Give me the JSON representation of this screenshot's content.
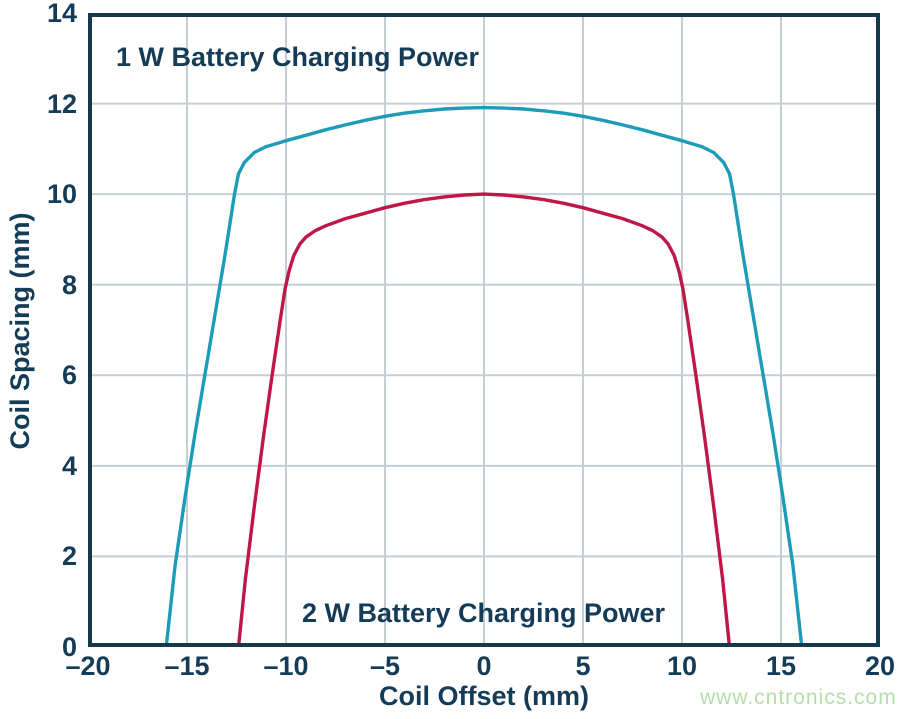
{
  "watermark": {
    "text": "www.cntronics.com",
    "color": "#b5dfaa"
  },
  "chart_data": {
    "type": "line",
    "title": "",
    "xlabel": "Coil Offset (mm)",
    "ylabel": "Coil Spacing (mm)",
    "xlim": [
      -20,
      20
    ],
    "ylim": [
      0,
      14
    ],
    "grid": true,
    "legend_position": "in-plot text annotations",
    "colors": {
      "axis_text": "#153c57",
      "plot_border": "#17384a",
      "gridline": "#c5ced4",
      "series_1w": "#1d9cb8",
      "series_2w": "#bf1746"
    },
    "xticks": [
      {
        "v": -20,
        "label": "–20"
      },
      {
        "v": -15,
        "label": "–15"
      },
      {
        "v": -10,
        "label": "–10"
      },
      {
        "v": -5,
        "label": "–5"
      },
      {
        "v": 0,
        "label": "0"
      },
      {
        "v": 5,
        "label": "5"
      },
      {
        "v": 10,
        "label": "10"
      },
      {
        "v": 15,
        "label": "15"
      },
      {
        "v": 20,
        "label": "20"
      }
    ],
    "yticks": [
      {
        "v": 0,
        "label": "0"
      },
      {
        "v": 2,
        "label": "2"
      },
      {
        "v": 4,
        "label": "4"
      },
      {
        "v": 6,
        "label": "6"
      },
      {
        "v": 8,
        "label": "8"
      },
      {
        "v": 10,
        "label": "10"
      },
      {
        "v": 12,
        "label": "12"
      },
      {
        "v": 14,
        "label": "14"
      }
    ],
    "xgrid": [
      -15,
      -10,
      -5,
      0,
      5,
      10,
      15
    ],
    "ygrid": [
      2,
      4,
      6,
      8,
      10,
      12
    ],
    "annotations": [
      {
        "text": "1 W Battery Charging Power",
        "position": "top-left"
      },
      {
        "text": "2 W Battery Charging Power",
        "position": "bottom-center"
      }
    ],
    "series": [
      {
        "name": "1 W Battery Charging Power",
        "color": "#1d9cb8",
        "points": [
          [
            -16.05,
            0
          ],
          [
            -15.6,
            1.8
          ],
          [
            -15.1,
            3.3
          ],
          [
            -14.6,
            4.7
          ],
          [
            -14.1,
            6.0
          ],
          [
            -13.6,
            7.3
          ],
          [
            -13.1,
            8.6
          ],
          [
            -12.85,
            9.3
          ],
          [
            -12.6,
            10.0
          ],
          [
            -12.4,
            10.45
          ],
          [
            -12.1,
            10.7
          ],
          [
            -11.6,
            10.92
          ],
          [
            -11,
            11.05
          ],
          [
            -10,
            11.18
          ],
          [
            -9,
            11.3
          ],
          [
            -8,
            11.42
          ],
          [
            -7,
            11.53
          ],
          [
            -6,
            11.63
          ],
          [
            -5,
            11.72
          ],
          [
            -4,
            11.79
          ],
          [
            -3,
            11.84
          ],
          [
            -2,
            11.88
          ],
          [
            -1,
            11.9
          ],
          [
            0,
            11.91
          ],
          [
            1,
            11.9
          ],
          [
            2,
            11.88
          ],
          [
            3,
            11.84
          ],
          [
            4,
            11.79
          ],
          [
            5,
            11.72
          ],
          [
            6,
            11.63
          ],
          [
            7,
            11.53
          ],
          [
            8,
            11.42
          ],
          [
            9,
            11.3
          ],
          [
            10,
            11.18
          ],
          [
            11,
            11.05
          ],
          [
            11.6,
            10.92
          ],
          [
            12.1,
            10.7
          ],
          [
            12.4,
            10.45
          ],
          [
            12.6,
            10.0
          ],
          [
            12.85,
            9.3
          ],
          [
            13.1,
            8.6
          ],
          [
            13.6,
            7.3
          ],
          [
            14.1,
            6.0
          ],
          [
            14.6,
            4.7
          ],
          [
            15.1,
            3.3
          ],
          [
            15.6,
            1.8
          ],
          [
            16.05,
            0
          ]
        ]
      },
      {
        "name": "2 W Battery Charging Power",
        "color": "#bf1746",
        "points": [
          [
            -12.4,
            0
          ],
          [
            -12.05,
            1.5
          ],
          [
            -11.6,
            3.1
          ],
          [
            -11.15,
            4.6
          ],
          [
            -10.7,
            6.0
          ],
          [
            -10.3,
            7.2
          ],
          [
            -10.05,
            7.9
          ],
          [
            -9.85,
            8.3
          ],
          [
            -9.6,
            8.65
          ],
          [
            -9.3,
            8.9
          ],
          [
            -9,
            9.05
          ],
          [
            -8.5,
            9.2
          ],
          [
            -8,
            9.3
          ],
          [
            -7,
            9.46
          ],
          [
            -6,
            9.58
          ],
          [
            -5,
            9.7
          ],
          [
            -4,
            9.8
          ],
          [
            -3,
            9.88
          ],
          [
            -2,
            9.94
          ],
          [
            -1,
            9.98
          ],
          [
            0,
            10.0
          ],
          [
            1,
            9.98
          ],
          [
            2,
            9.94
          ],
          [
            3,
            9.88
          ],
          [
            4,
            9.8
          ],
          [
            5,
            9.7
          ],
          [
            6,
            9.58
          ],
          [
            7,
            9.46
          ],
          [
            8,
            9.3
          ],
          [
            8.5,
            9.2
          ],
          [
            9,
            9.05
          ],
          [
            9.3,
            8.9
          ],
          [
            9.6,
            8.65
          ],
          [
            9.85,
            8.3
          ],
          [
            10.05,
            7.9
          ],
          [
            10.3,
            7.2
          ],
          [
            10.7,
            6.0
          ],
          [
            11.15,
            4.6
          ],
          [
            11.6,
            3.1
          ],
          [
            12.05,
            1.5
          ],
          [
            12.4,
            0
          ]
        ]
      }
    ]
  }
}
